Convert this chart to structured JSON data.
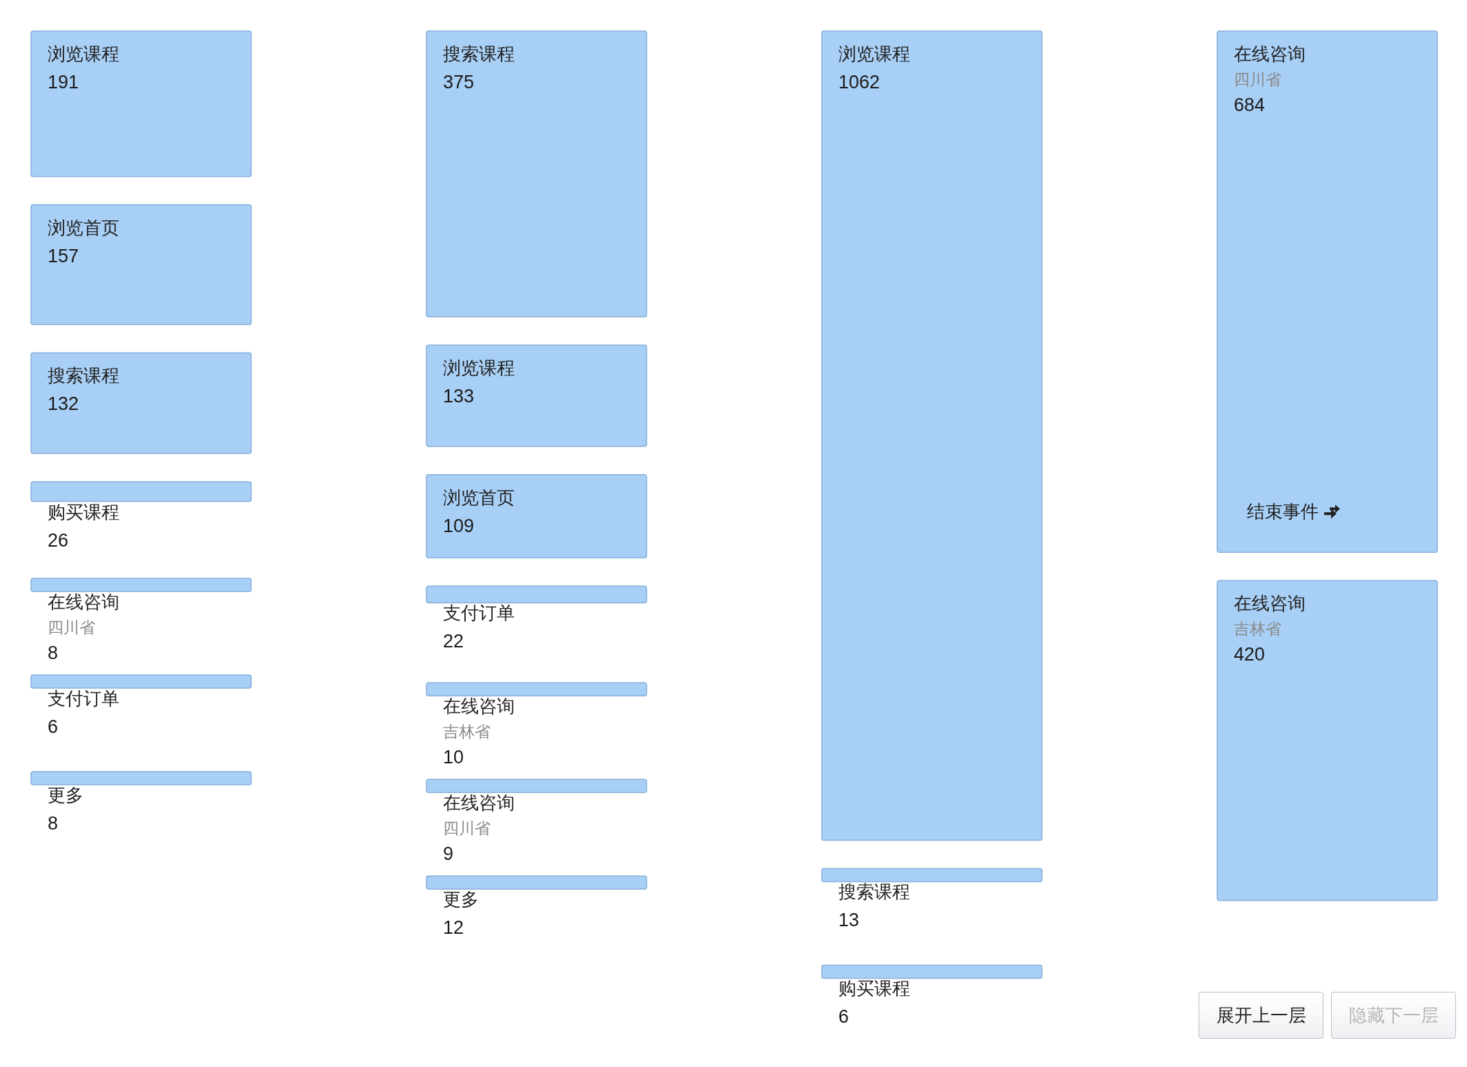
{
  "chart_data": [
    {
      "type": "other",
      "categories": [
        "浏览课程",
        "浏览首页",
        "搜索课程",
        "购买课程",
        "在线咨询",
        "支付订单",
        "更多"
      ],
      "values": [
        191,
        157,
        132,
        26,
        8,
        6,
        8
      ],
      "color": "#a8cff5",
      "data_labels": true,
      "annotations": [
        {
          "text": "四川省",
          "x": "在线咨询"
        }
      ]
    },
    {
      "type": "other",
      "categories": [
        "搜索课程",
        "浏览课程",
        "浏览首页",
        "支付订单",
        "在线咨询",
        "在线咨询",
        "更多"
      ],
      "values": [
        375,
        133,
        109,
        22,
        10,
        9,
        12
      ],
      "color": "#a8cff5",
      "data_labels": true,
      "annotations": [
        {
          "text": "吉林省",
          "x": "在线咨询"
        },
        {
          "text": "四川省",
          "x": "在线咨询"
        }
      ]
    },
    {
      "type": "other",
      "categories": [
        "浏览课程",
        "搜索课程",
        "购买课程"
      ],
      "values": [
        1062,
        13,
        6
      ],
      "color": "#a8cff5",
      "data_labels": true
    },
    {
      "type": "other",
      "categories": [
        "在线咨询",
        "在线咨询"
      ],
      "values": [
        684,
        420
      ],
      "color": "#a8cff5",
      "data_labels": true,
      "annotations": [
        {
          "text": "四川省",
          "x": "在线咨询"
        },
        {
          "text": "吉林省",
          "x": "在线咨询"
        },
        {
          "text": "结束事件",
          "x": "在线咨询"
        },
        "展开上一层",
        "隐藏下一层"
      ]
    }
  ]
}
